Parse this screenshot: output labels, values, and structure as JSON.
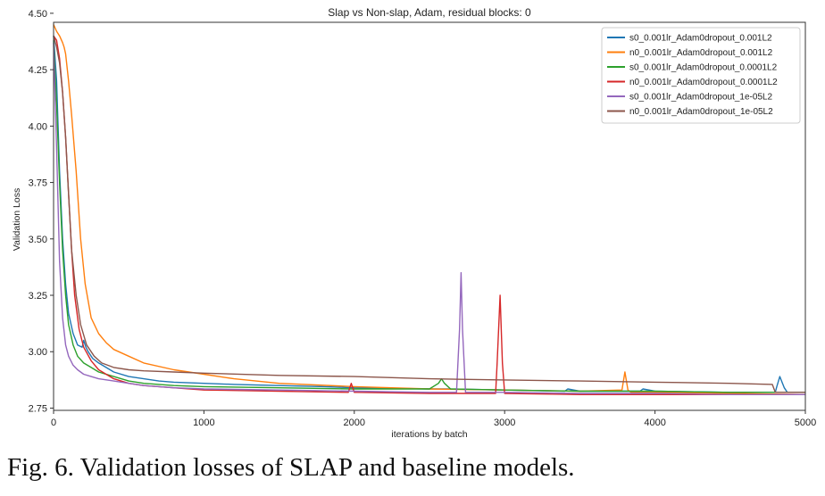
{
  "caption": "Fig. 6.   Validation losses of SLAP and baseline models.",
  "chart_data": {
    "type": "line",
    "title": "Slap vs Non-slap, Adam, residual blocks: 0",
    "xlabel": "iterations by batch",
    "ylabel": "Validation Loss",
    "xlim": [
      0,
      5000
    ],
    "ylim": [
      2.74,
      4.46
    ],
    "x_ticks": [
      0,
      1000,
      2000,
      3000,
      4000,
      5000
    ],
    "y_ticks": [
      2.75,
      3.0,
      3.25,
      3.5,
      3.75,
      4.0,
      4.25,
      4.5
    ],
    "x_tick_labels": [
      "0",
      "1000",
      "2000",
      "3000",
      "4000",
      "5000"
    ],
    "y_tick_labels": [
      "2.75",
      "3.00",
      "3.25",
      "3.50",
      "3.75",
      "4.00",
      "4.25",
      "4.50"
    ],
    "grid": false,
    "legend_position": "top-right",
    "series": [
      {
        "name": "s0_0.001lr_Adam0dropout_0.001L2",
        "color": "#1f77b4",
        "x": [
          0,
          20,
          40,
          60,
          80,
          100,
          130,
          160,
          190,
          200,
          215,
          230,
          260,
          300,
          350,
          400,
          500,
          600,
          700,
          800,
          1000,
          1200,
          1500,
          1800,
          2000,
          2500,
          2600,
          2620,
          3000,
          3400,
          3420,
          3500,
          3900,
          3920,
          4000,
          4500,
          4800,
          4810,
          4830,
          4860,
          4880,
          5000
        ],
        "y": [
          4.4,
          4.2,
          3.8,
          3.5,
          3.3,
          3.17,
          3.08,
          3.03,
          3.02,
          3.05,
          3.02,
          3.0,
          2.97,
          2.95,
          2.93,
          2.91,
          2.89,
          2.88,
          2.87,
          2.865,
          2.86,
          2.855,
          2.85,
          2.845,
          2.84,
          2.835,
          2.835,
          2.835,
          2.83,
          2.825,
          2.835,
          2.825,
          2.825,
          2.835,
          2.825,
          2.82,
          2.82,
          2.845,
          2.89,
          2.84,
          2.82,
          2.82
        ]
      },
      {
        "name": "n0_0.001lr_Adam0dropout_0.001L2",
        "color": "#ff7f0e",
        "x": [
          0,
          20,
          40,
          60,
          70,
          80,
          100,
          120,
          150,
          180,
          210,
          250,
          300,
          350,
          400,
          500,
          600,
          800,
          1000,
          1200,
          1500,
          2000,
          2500,
          3000,
          3500,
          3780,
          3800,
          3820,
          3840,
          4000,
          4500,
          5000
        ],
        "y": [
          4.45,
          4.42,
          4.4,
          4.37,
          4.35,
          4.32,
          4.2,
          4.05,
          3.8,
          3.5,
          3.3,
          3.15,
          3.08,
          3.04,
          3.01,
          2.98,
          2.95,
          2.92,
          2.9,
          2.88,
          2.86,
          2.845,
          2.835,
          2.83,
          2.825,
          2.83,
          2.91,
          2.83,
          2.82,
          2.82,
          2.815,
          2.81
        ]
      },
      {
        "name": "s0_0.001lr_Adam0dropout_0.0001L2",
        "color": "#2ca02c",
        "x": [
          0,
          20,
          40,
          60,
          80,
          100,
          130,
          160,
          200,
          250,
          300,
          400,
          500,
          600,
          800,
          1000,
          1500,
          2000,
          2500,
          2560,
          2580,
          2600,
          2640,
          3000,
          3500,
          4000,
          4500,
          5000
        ],
        "y": [
          4.38,
          4.1,
          3.75,
          3.45,
          3.25,
          3.12,
          3.03,
          2.98,
          2.95,
          2.93,
          2.91,
          2.89,
          2.87,
          2.86,
          2.85,
          2.845,
          2.84,
          2.835,
          2.835,
          2.86,
          2.88,
          2.86,
          2.835,
          2.83,
          2.825,
          2.825,
          2.82,
          2.82
        ]
      },
      {
        "name": "n0_0.001lr_Adam0dropout_0.0001L2",
        "color": "#d62728",
        "x": [
          0,
          20,
          40,
          60,
          80,
          100,
          120,
          140,
          170,
          200,
          250,
          300,
          400,
          500,
          600,
          800,
          1000,
          1500,
          1960,
          1980,
          2000,
          2020,
          2500,
          2940,
          2950,
          2970,
          2985,
          3000,
          3500,
          4000,
          4500,
          5000
        ],
        "y": [
          4.4,
          4.38,
          4.3,
          4.15,
          3.95,
          3.7,
          3.45,
          3.25,
          3.1,
          3.02,
          2.96,
          2.92,
          2.88,
          2.86,
          2.85,
          2.84,
          2.83,
          2.825,
          2.82,
          2.86,
          2.82,
          2.82,
          2.815,
          2.815,
          2.95,
          3.25,
          2.95,
          2.815,
          2.81,
          2.81,
          2.81,
          2.81
        ]
      },
      {
        "name": "s0_0.001lr_Adam0dropout_1e-05L2",
        "color": "#9467bd",
        "x": [
          0,
          20,
          40,
          60,
          80,
          100,
          130,
          160,
          200,
          250,
          300,
          400,
          500,
          600,
          800,
          1000,
          1500,
          2000,
          2500,
          2680,
          2700,
          2710,
          2720,
          2740,
          3000,
          3500,
          4000,
          4500,
          5000
        ],
        "y": [
          4.37,
          3.9,
          3.4,
          3.15,
          3.03,
          2.98,
          2.94,
          2.92,
          2.9,
          2.89,
          2.88,
          2.87,
          2.86,
          2.85,
          2.84,
          2.835,
          2.83,
          2.825,
          2.82,
          2.82,
          3.1,
          3.35,
          3.1,
          2.82,
          2.82,
          2.815,
          2.815,
          2.81,
          2.81
        ]
      },
      {
        "name": "n0_0.001lr_Adam0dropout_1e-05L2",
        "color": "#8c564b",
        "x": [
          0,
          20,
          40,
          60,
          80,
          100,
          120,
          150,
          180,
          220,
          270,
          320,
          400,
          500,
          600,
          800,
          1000,
          1500,
          2000,
          2500,
          3000,
          3500,
          4000,
          4500,
          4780,
          4800,
          4820,
          5000
        ],
        "y": [
          4.4,
          4.35,
          4.28,
          4.15,
          3.95,
          3.7,
          3.45,
          3.25,
          3.12,
          3.03,
          2.98,
          2.95,
          2.93,
          2.92,
          2.915,
          2.91,
          2.905,
          2.895,
          2.89,
          2.88,
          2.875,
          2.87,
          2.865,
          2.86,
          2.855,
          2.82,
          2.82,
          2.82
        ]
      }
    ]
  }
}
